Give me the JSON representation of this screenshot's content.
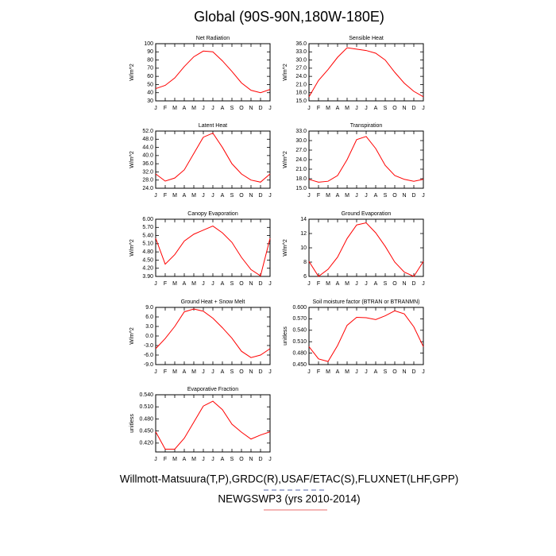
{
  "title": "Global (90S-90N,180W-180E)",
  "chart_data": [
    {
      "type": "line",
      "title": "Net Radiation",
      "ylabel": "W/m^2",
      "color": "#ff0000",
      "categories": [
        "J",
        "F",
        "M",
        "A",
        "M",
        "J",
        "J",
        "A",
        "S",
        "O",
        "N",
        "D",
        "J"
      ],
      "values": [
        45,
        49,
        58,
        72,
        84,
        91,
        90,
        79,
        66,
        52,
        43,
        40,
        44
      ],
      "ylim": [
        30,
        100
      ],
      "yticks": [
        30,
        40,
        50,
        60,
        70,
        80,
        90,
        100
      ]
    },
    {
      "type": "line",
      "title": "Sensible Heat",
      "ylabel": "W/m^2",
      "color": "#ff0000",
      "categories": [
        "J",
        "F",
        "M",
        "A",
        "M",
        "J",
        "J",
        "A",
        "S",
        "O",
        "N",
        "D",
        "J"
      ],
      "values": [
        16.5,
        22.5,
        26.5,
        31,
        34.5,
        34,
        33.5,
        32.5,
        30,
        25.5,
        21.5,
        18.5,
        16.5
      ],
      "ylim": [
        15,
        36
      ],
      "yticks": [
        {
          "value": 15,
          "label": "15.0"
        },
        {
          "value": 18,
          "label": "18.0"
        },
        {
          "value": 21,
          "label": "21.0"
        },
        {
          "value": 24,
          "label": "24.0"
        },
        {
          "value": 27,
          "label": "27.0"
        },
        {
          "value": 30,
          "label": "30.0"
        },
        {
          "value": 33,
          "label": "33.0"
        },
        {
          "value": 36,
          "label": "36.0"
        }
      ]
    },
    {
      "type": "line",
      "title": "Latent Heat",
      "ylabel": "W/m^2",
      "color": "#ff0000",
      "categories": [
        "J",
        "F",
        "M",
        "A",
        "M",
        "J",
        "J",
        "A",
        "S",
        "O",
        "N",
        "D",
        "J"
      ],
      "values": [
        31,
        27.5,
        29,
        33,
        41,
        49,
        51,
        44,
        36,
        31,
        28,
        27,
        31
      ],
      "ylim": [
        24,
        52
      ],
      "yticks": [
        {
          "value": 24,
          "label": "24.0"
        },
        {
          "value": 28,
          "label": "28.0"
        },
        {
          "value": 32,
          "label": "32.0"
        },
        {
          "value": 36,
          "label": "36.0"
        },
        {
          "value": 40,
          "label": "40.0"
        },
        {
          "value": 44,
          "label": "44.0"
        },
        {
          "value": 48,
          "label": "48.0"
        },
        {
          "value": 52,
          "label": "52.0"
        }
      ]
    },
    {
      "type": "line",
      "title": "Transpiration",
      "ylabel": "W/m^2",
      "color": "#ff0000",
      "categories": [
        "J",
        "F",
        "M",
        "A",
        "M",
        "J",
        "J",
        "A",
        "S",
        "O",
        "N",
        "D",
        "J"
      ],
      "values": [
        17.8,
        16.9,
        17.2,
        19.0,
        24.0,
        30.3,
        31.3,
        27.5,
        22.2,
        19.0,
        17.8,
        17.2,
        17.8
      ],
      "ylim": [
        15,
        33
      ],
      "yticks": [
        {
          "value": 15,
          "label": "15.0"
        },
        {
          "value": 18,
          "label": "18.0"
        },
        {
          "value": 21,
          "label": "21.0"
        },
        {
          "value": 24,
          "label": "24.0"
        },
        {
          "value": 27,
          "label": "27.0"
        },
        {
          "value": 30,
          "label": "30.0"
        },
        {
          "value": 33,
          "label": "33.0"
        }
      ]
    },
    {
      "type": "line",
      "title": "Canopy Evaporation",
      "ylabel": "W/m^2",
      "color": "#ff0000",
      "categories": [
        "J",
        "F",
        "M",
        "A",
        "M",
        "J",
        "J",
        "A",
        "S",
        "O",
        "N",
        "D",
        "J"
      ],
      "values": [
        5.3,
        4.35,
        4.7,
        5.2,
        5.45,
        5.6,
        5.75,
        5.5,
        5.15,
        4.6,
        4.15,
        3.92,
        5.3
      ],
      "ylim": [
        3.9,
        6.0
      ],
      "yticks": [
        {
          "value": 3.9,
          "label": "3.90"
        },
        {
          "value": 4.2,
          "label": "4.20"
        },
        {
          "value": 4.5,
          "label": "4.50"
        },
        {
          "value": 4.8,
          "label": "4.80"
        },
        {
          "value": 5.1,
          "label": "5.10"
        },
        {
          "value": 5.4,
          "label": "5.40"
        },
        {
          "value": 5.7,
          "label": "5.70"
        },
        {
          "value": 6.0,
          "label": "6.00"
        }
      ]
    },
    {
      "type": "line",
      "title": "Ground Evaporation",
      "ylabel": "W/m^2",
      "color": "#ff0000",
      "categories": [
        "J",
        "F",
        "M",
        "A",
        "M",
        "J",
        "J",
        "A",
        "S",
        "O",
        "N",
        "D",
        "J"
      ],
      "values": [
        8.1,
        6.0,
        7.0,
        8.7,
        11.3,
        13.2,
        13.5,
        12.1,
        10.2,
        8.0,
        6.6,
        6.0,
        8.1
      ],
      "ylim": [
        6,
        14
      ],
      "yticks": [
        6,
        8,
        10,
        12,
        14
      ]
    },
    {
      "type": "line",
      "title": "Ground Heat + Snow Melt",
      "ylabel": "W/m^2",
      "color": "#ff0000",
      "categories": [
        "J",
        "F",
        "M",
        "A",
        "M",
        "J",
        "J",
        "A",
        "S",
        "O",
        "N",
        "D",
        "J"
      ],
      "values": [
        -4.0,
        -0.8,
        3.0,
        7.6,
        8.5,
        7.8,
        5.6,
        2.6,
        -0.7,
        -4.8,
        -6.8,
        -6.0,
        -4.0
      ],
      "ylim": [
        -9,
        9
      ],
      "yticks": [
        {
          "value": -9,
          "label": "-9.0"
        },
        {
          "value": -6,
          "label": "-6.0"
        },
        {
          "value": -3,
          "label": "-3.0"
        },
        {
          "value": 0,
          "label": "0.0"
        },
        {
          "value": 3,
          "label": "3.0"
        },
        {
          "value": 6,
          "label": "6.0"
        },
        {
          "value": 9,
          "label": "9.0"
        }
      ]
    },
    {
      "type": "line",
      "title": "Soil moisture factor (BTRAN or BTRANMN)",
      "ylabel": "unitless",
      "color": "#ff0000",
      "categories": [
        "J",
        "F",
        "M",
        "A",
        "M",
        "J",
        "J",
        "A",
        "S",
        "O",
        "N",
        "D",
        "J"
      ],
      "values": [
        0.497,
        0.465,
        0.458,
        0.5,
        0.553,
        0.574,
        0.573,
        0.568,
        0.578,
        0.591,
        0.583,
        0.549,
        0.497
      ],
      "ylim": [
        0.45,
        0.6
      ],
      "yticks": [
        {
          "value": 0.45,
          "label": "0.450"
        },
        {
          "value": 0.48,
          "label": "0.480"
        },
        {
          "value": 0.51,
          "label": "0.510"
        },
        {
          "value": 0.54,
          "label": "0.540"
        },
        {
          "value": 0.57,
          "label": "0.570"
        },
        {
          "value": 0.6,
          "label": "0.600"
        }
      ]
    },
    {
      "type": "line",
      "title": "Evaporative Fraction",
      "ylabel": "unitless",
      "color": "#ff0000",
      "categories": [
        "J",
        "F",
        "M",
        "A",
        "M",
        "J",
        "J",
        "A",
        "S",
        "O",
        "N",
        "D",
        "J"
      ],
      "values": [
        0.448,
        0.405,
        0.405,
        0.432,
        0.472,
        0.512,
        0.524,
        0.503,
        0.467,
        0.447,
        0.43,
        0.44,
        0.448
      ],
      "ylim": [
        0.398,
        0.54
      ],
      "yticks": [
        {
          "value": 0.42,
          "label": "0.420"
        },
        {
          "value": 0.45,
          "label": "0.450"
        },
        {
          "value": 0.48,
          "label": "0.480"
        },
        {
          "value": 0.51,
          "label": "0.510"
        },
        {
          "value": 0.54,
          "label": "0.540"
        }
      ]
    }
  ],
  "legend": [
    {
      "name": "Willmott-Matsuura(T,P),GRDC(R),USAF/ETAC(S),FLUXNET(LHF,GPP)",
      "color": "#5566aa",
      "dashed": true
    },
    {
      "name": "NEWGSWP3 (yrs 2010-2014)",
      "color": "#e86b6b",
      "dashed": false
    }
  ]
}
